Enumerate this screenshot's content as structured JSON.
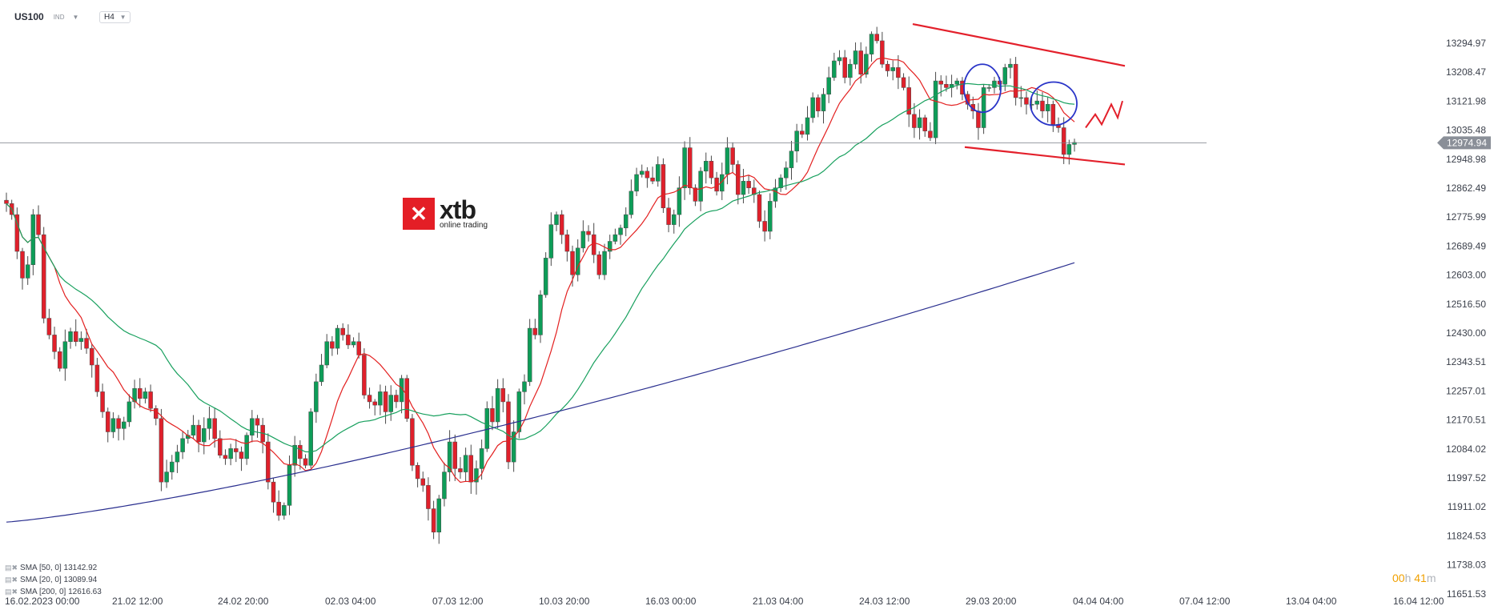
{
  "symbol": "US100",
  "symbol_type": "IND",
  "timeframe": "H4",
  "logo": {
    "name": "xtb",
    "tagline": "online trading"
  },
  "timer": {
    "hours": "00",
    "hours_unit": "h",
    "minutes": "41",
    "minutes_unit": "m"
  },
  "indicators": [
    {
      "label": "SMA [50, 0]",
      "value": "13142.92",
      "color": "#2a2f8f"
    },
    {
      "label": "SMA [20, 0]",
      "value": "13089.94",
      "color": "#18a05e"
    },
    {
      "label": "SMA [200, 0]",
      "value": "12616.63",
      "color": "#e32020"
    }
  ],
  "chart_data": {
    "type": "candlestick",
    "y_ticks": [
      "13294.97",
      "13208.47",
      "13121.98",
      "13035.48",
      "12948.98",
      "12862.49",
      "12775.99",
      "12689.49",
      "12603.00",
      "12516.50",
      "12430.00",
      "12343.51",
      "12257.01",
      "12170.51",
      "12084.02",
      "11997.52",
      "11911.02",
      "11824.53",
      "11738.03",
      "11651.53"
    ],
    "y_range": [
      11625,
      13335
    ],
    "x_ticks": [
      "16.02.2023   00:00",
      "21.02  12:00",
      "24.02  20:00",
      "02.03  04:00",
      "07.03  12:00",
      "10.03  20:00",
      "16.03  00:00",
      "21.03  04:00",
      "24.03  12:00",
      "29.03  20:00",
      "04.04  04:00",
      "07.04  12:00",
      "13.04  04:00",
      "16.04  12:00"
    ],
    "last_price": "12974.94",
    "last_price_value": 12974.94,
    "closes": [
      12793,
      12760,
      12650,
      12570,
      12610,
      12760,
      12700,
      12450,
      12400,
      12350,
      12300,
      12380,
      12410,
      12380,
      12390,
      12360,
      12310,
      12230,
      12170,
      12110,
      12150,
      12120,
      12140,
      12200,
      12240,
      12210,
      12230,
      12180,
      12150,
      11960,
      11990,
      12020,
      12050,
      12090,
      12100,
      12130,
      12080,
      12120,
      12150,
      12090,
      12040,
      12030,
      12060,
      12050,
      12030,
      12100,
      12150,
      12130,
      12080,
      11960,
      11900,
      11860,
      11890,
      12010,
      12070,
      12030,
      12010,
      12170,
      12260,
      12310,
      12380,
      12360,
      12420,
      12400,
      12370,
      12380,
      12340,
      12220,
      12200,
      12190,
      12230,
      12170,
      12220,
      12200,
      12270,
      12150,
      12010,
      11970,
      11950,
      11880,
      11810,
      11910,
      11990,
      12080,
      12000,
      11990,
      12040,
      11960,
      12000,
      12060,
      12180,
      12140,
      12240,
      12200,
      12020,
      12110,
      12230,
      12260,
      12420,
      12400,
      12520,
      12630,
      12730,
      12760,
      12700,
      12650,
      12580,
      12660,
      12710,
      12700,
      12640,
      12580,
      12650,
      12680,
      12700,
      12720,
      12760,
      12830,
      12880,
      12890,
      12870,
      12860,
      12910,
      12780,
      12730,
      12760,
      12840,
      12960,
      12840,
      12800,
      12890,
      12920,
      12870,
      12830,
      12880,
      12960,
      12910,
      12820,
      12860,
      12840,
      12820,
      12740,
      12710,
      12800,
      12840,
      12870,
      12900,
      12950,
      13010,
      13000,
      13050,
      13110,
      13070,
      13120,
      13170,
      13220,
      13230,
      13170,
      13210,
      13250,
      13180,
      13240,
      13300,
      13280,
      13210,
      13190,
      13200,
      13170,
      13140,
      13060,
      13020,
      13050,
      13010,
      12990,
      13160,
      13150,
      13140,
      13150,
      13160,
      13120,
      13090,
      13070,
      13020,
      13140,
      13140,
      13160,
      13150,
      13200,
      13210,
      13110,
      13110,
      13090,
      13090,
      13100,
      13070,
      13090,
      13030,
      13020,
      12940,
      12970,
      12976
    ],
    "series": [
      {
        "name": "SMA [20, 0]",
        "color": "#18a05e"
      },
      {
        "name": "SMA [50, 0]",
        "color": "#2a2f8f"
      },
      {
        "name": "SMA [200, 0]",
        "color": "#e32020"
      }
    ],
    "annotations": {
      "trend_lines": [
        [
          [
            1140,
            13330
          ],
          [
            1405,
            13205
          ]
        ],
        [
          [
            1205,
            12962
          ],
          [
            1405,
            12910
          ]
        ]
      ],
      "ellipses": [
        [
          1227,
          13138,
          23,
          30
        ],
        [
          1316,
          13092,
          29,
          27
        ]
      ],
      "zigzag": [
        [
          1356,
          13020
        ],
        [
          1368,
          13060
        ],
        [
          1376,
          13030
        ],
        [
          1388,
          13090
        ],
        [
          1396,
          13050
        ],
        [
          1402,
          13100
        ]
      ]
    }
  }
}
